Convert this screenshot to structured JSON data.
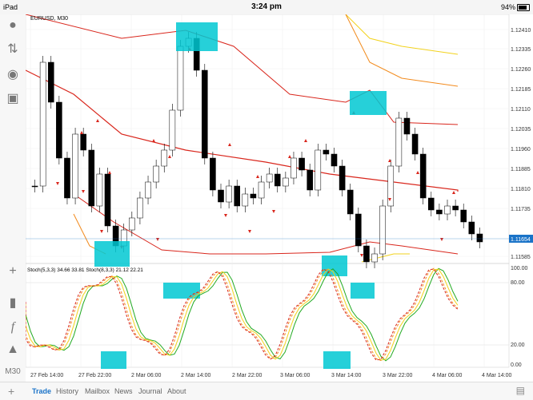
{
  "status_bar": {
    "device": "iPad",
    "time": "3:24 pm",
    "battery": "94%"
  },
  "chart": {
    "symbol_label": "EURUSD, M30",
    "price_labels": [
      "1.12410",
      "1.12335",
      "1.12260",
      "1.12185",
      "1.12110",
      "1.12035",
      "1.11960",
      "1.11885",
      "1.11810",
      "1.11735",
      "1.11654",
      "1.11585"
    ],
    "current_price": "1.11654",
    "osc_label": "Stoch(5,3,3) 34.66 33.81  Stoch(8,3,3) 21.12 22.21",
    "osc_levels": [
      "100.00",
      "80.00",
      "20.00",
      "0.00"
    ],
    "time_labels": [
      "27 Feb 14:00",
      "27 Feb 22:00",
      "2 Mar 06:00",
      "2 Mar 14:00",
      "2 Mar 22:00",
      "3 Mar 06:00",
      "3 Mar 14:00",
      "3 Mar 22:00",
      "4 Mar 06:00",
      "4 Mar 14:00"
    ],
    "timeframe": "M30",
    "colors": {
      "red": "#d9261c",
      "orange": "#f28a1c",
      "yellow": "#f2d21c",
      "green": "#22aa22",
      "highlight": "#00c8d2",
      "price": "#1a73c8"
    }
  },
  "sidebar": {
    "timeframe_label": "M30"
  },
  "tabs": [
    "Trade",
    "History",
    "Mailbox",
    "News",
    "Journal",
    "About"
  ]
}
